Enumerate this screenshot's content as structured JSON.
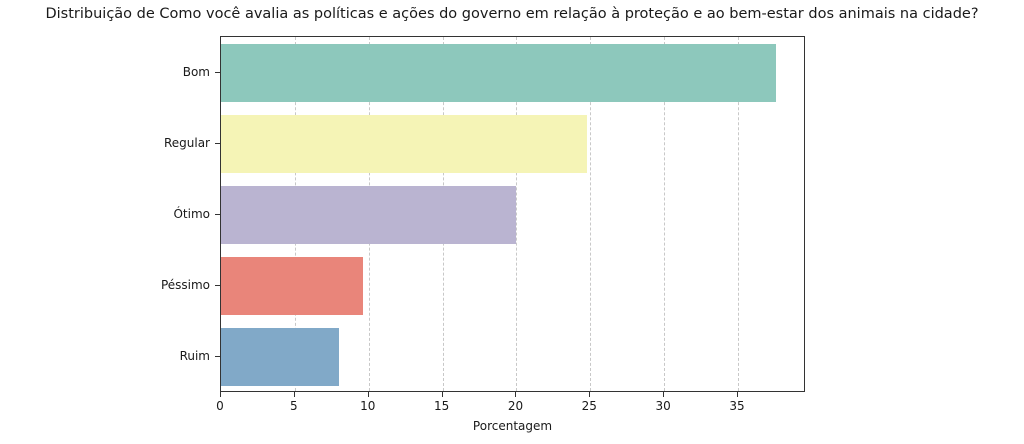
{
  "chart_data": {
    "type": "bar",
    "orientation": "horizontal",
    "title": "Distribuição de Como você avalia as políticas e ações do governo em relação à proteção e ao bem-estar dos animais na cidade?",
    "xlabel": "Porcentagem",
    "ylabel": "",
    "categories": [
      "Bom",
      "Regular",
      "Ótimo",
      "Péssimo",
      "Ruim"
    ],
    "values": [
      37.6,
      24.8,
      20.0,
      9.6,
      8.0
    ],
    "colors": [
      "#8dc8bc",
      "#f5f4b6",
      "#bab4d1",
      "#e9857a",
      "#81a9c8"
    ],
    "xlim": [
      0,
      39.6
    ],
    "xticks": [
      0,
      5,
      10,
      15,
      20,
      25,
      30,
      35
    ],
    "grid": {
      "x": true,
      "y": false,
      "style": "dashed"
    },
    "legend": null
  }
}
